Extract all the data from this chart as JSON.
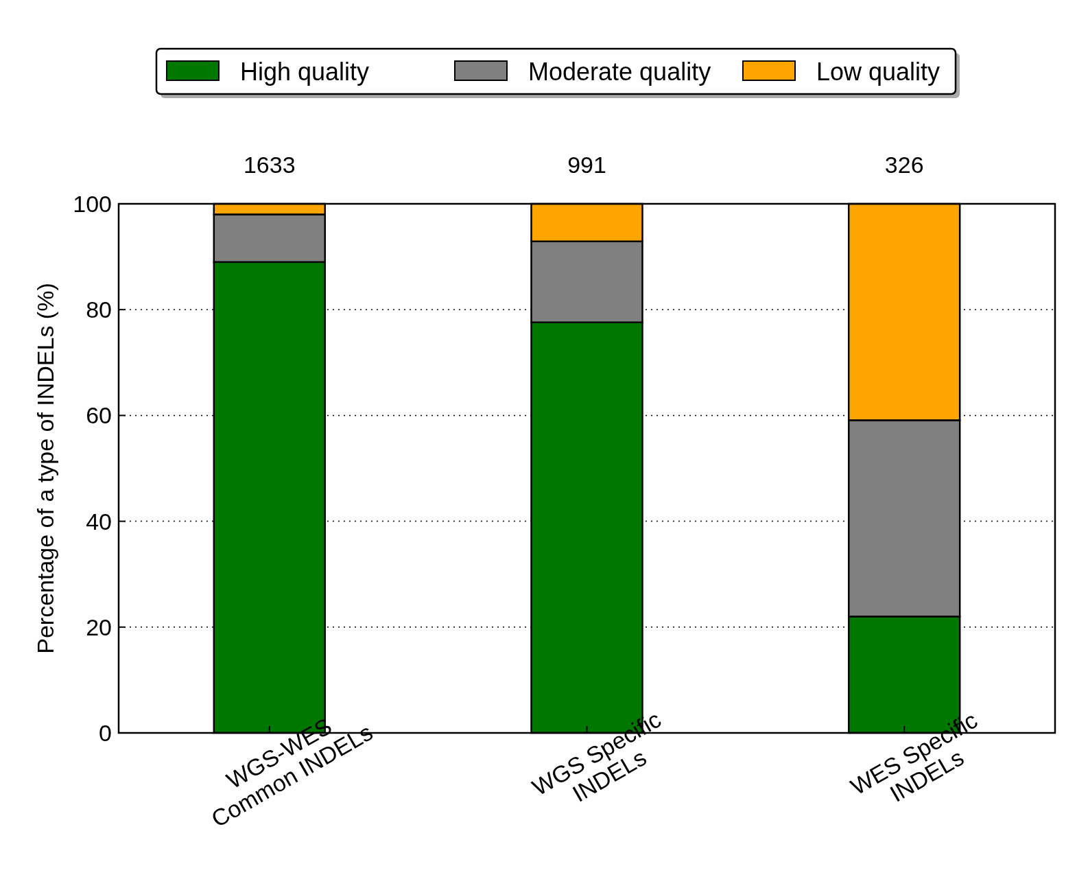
{
  "chart_data": {
    "type": "bar",
    "stacked": true,
    "ylabel": "Percentage of a type of INDELs (%)",
    "categories": [
      "WGS-WES Common INDELs",
      "WGS Specific INDELs",
      "WES Specific INDELs"
    ],
    "series": [
      {
        "name": "High quality",
        "color": "#007800",
        "values": [
          89,
          77.6,
          22
        ]
      },
      {
        "name": "Moderate quality",
        "color": "#808080",
        "values": [
          9,
          15.3,
          37.1
        ]
      },
      {
        "name": "Low quality",
        "color": "#ffa500",
        "values": [
          2,
          7.1,
          40.9
        ]
      }
    ],
    "annotations": [
      {
        "text": "1633",
        "x": "WGS-WES Common INDELs",
        "y": 100
      },
      {
        "text": "991",
        "x": "WGS Specific INDELs",
        "y": 100
      },
      {
        "text": "326",
        "x": "WES Specific INDELs",
        "y": 100
      }
    ],
    "ylim": [
      0,
      100
    ],
    "yticks": [
      0,
      20,
      40,
      60,
      80,
      100
    ],
    "grid": "y",
    "legend": "top"
  }
}
